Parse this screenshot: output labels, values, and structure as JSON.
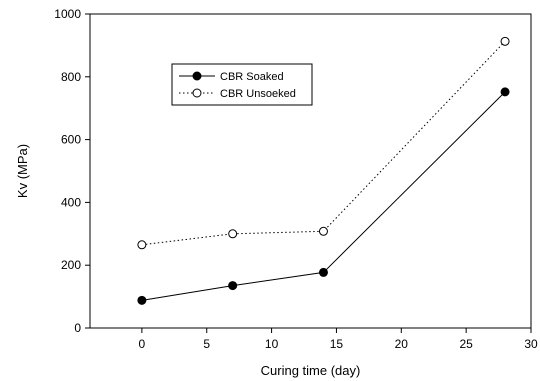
{
  "chart_data": {
    "type": "line",
    "title": "",
    "xlabel": "Curing time (day)",
    "ylabel": "Kv (MPa)",
    "xlim": [
      -4,
      30
    ],
    "ylim": [
      0,
      1000
    ],
    "xticks": [
      0,
      5,
      10,
      15,
      20,
      25,
      30
    ],
    "yticks": [
      0,
      200,
      400,
      600,
      800,
      1000
    ],
    "x": [
      0,
      7,
      14,
      28
    ],
    "grid": false,
    "legend_position": "upper-left",
    "series": [
      {
        "name": "CBR Soaked",
        "values": [
          88,
          135,
          177,
          752
        ],
        "line_style": "solid",
        "marker": "filled-circle",
        "color": "#000000"
      },
      {
        "name": "CBR Unsoeked",
        "values": [
          265,
          300,
          308,
          913
        ],
        "line_style": "dotted",
        "marker": "open-circle",
        "color": "#000000"
      }
    ]
  }
}
